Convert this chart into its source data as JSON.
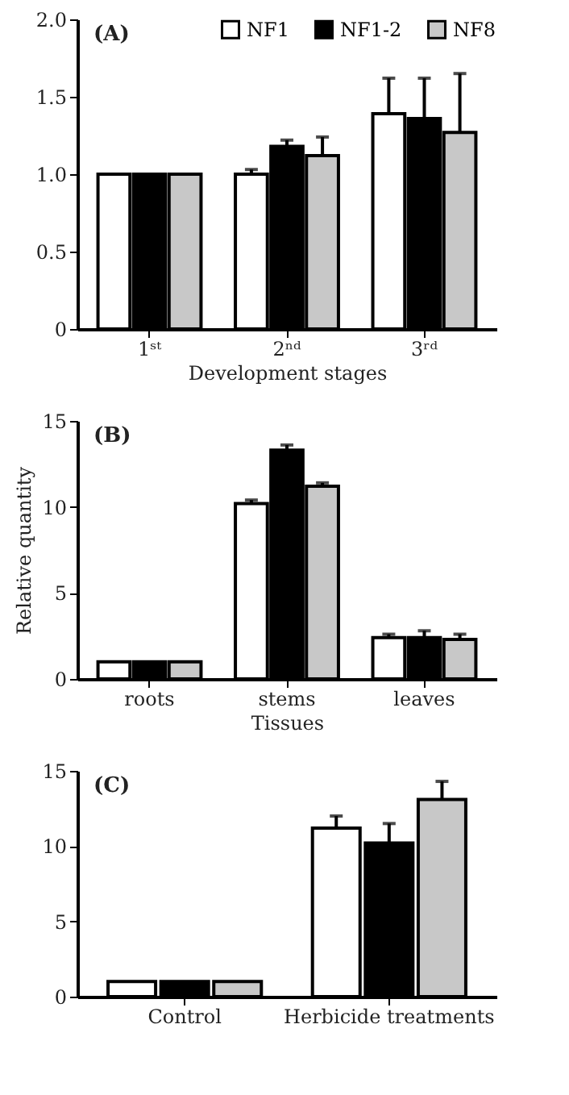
{
  "chart_data": [
    {
      "type": "bar",
      "title": "(A)",
      "xlabel": "Development stages",
      "categories": [
        "1ˢᵗ",
        "2ⁿᵈ",
        "3ʳᵈ"
      ],
      "ylim": [
        0,
        2
      ],
      "yticks": [
        0,
        0.5,
        {
          "value": 1,
          "label": "1.0"
        },
        1.5,
        {
          "value": 2,
          "label": "2.0"
        }
      ],
      "legend": "top right",
      "series": [
        {
          "name": "NF1",
          "color": "#ffffff",
          "values": [
            1,
            1.0,
            1.39
          ],
          "errors": [
            null,
            [
              1.0,
              1.03
            ],
            [
              1.39,
              1.62
            ]
          ]
        },
        {
          "name": "NF1-2",
          "color": "#000000",
          "values": [
            1,
            1.18,
            1.36
          ],
          "errors": [
            null,
            [
              1.18,
              1.22
            ],
            [
              1.36,
              1.62
            ]
          ]
        },
        {
          "name": "NF8",
          "color": "#c8c8c8",
          "values": [
            1,
            1.12,
            1.27
          ],
          "errors": [
            null,
            [
              1.12,
              1.24
            ],
            [
              1.27,
              1.65
            ]
          ]
        }
      ]
    },
    {
      "type": "bar",
      "title": "(B)",
      "xlabel": "Tissues",
      "ylabel": "Relative quantity",
      "categories": [
        "roots",
        "stems",
        "leaves"
      ],
      "ylim": [
        0,
        15
      ],
      "yticks": [
        0,
        5,
        10,
        15
      ],
      "series": [
        {
          "color": "#ffffff",
          "values": [
            1,
            10.2,
            2.4
          ],
          "errors": [
            null,
            [
              10.2,
              10.4
            ],
            [
              2.4,
              2.6
            ]
          ]
        },
        {
          "color": "#000000",
          "values": [
            1,
            13.3,
            2.4
          ],
          "errors": [
            null,
            [
              13.3,
              13.6
            ],
            [
              2.4,
              2.8
            ]
          ]
        },
        {
          "color": "#c8c8c8",
          "values": [
            1,
            11.2,
            2.3
          ],
          "errors": [
            null,
            [
              11.2,
              11.4
            ],
            [
              2.3,
              2.6
            ]
          ]
        }
      ]
    },
    {
      "type": "bar",
      "title": "(C)",
      "categories": [
        "Control",
        "Herbicide treatments"
      ],
      "ylim": [
        0,
        15
      ],
      "yticks": [
        0,
        5,
        10,
        15
      ],
      "series": [
        {
          "color": "#ffffff",
          "values": [
            1,
            11.2
          ],
          "errors": [
            null,
            [
              11.2,
              12.0
            ]
          ]
        },
        {
          "color": "#000000",
          "values": [
            1,
            10.2
          ],
          "errors": [
            null,
            [
              10.2,
              11.5
            ]
          ]
        },
        {
          "color": "#c8c8c8",
          "values": [
            1,
            13.1
          ],
          "errors": [
            null,
            [
              13.1,
              14.3
            ]
          ]
        }
      ]
    }
  ]
}
